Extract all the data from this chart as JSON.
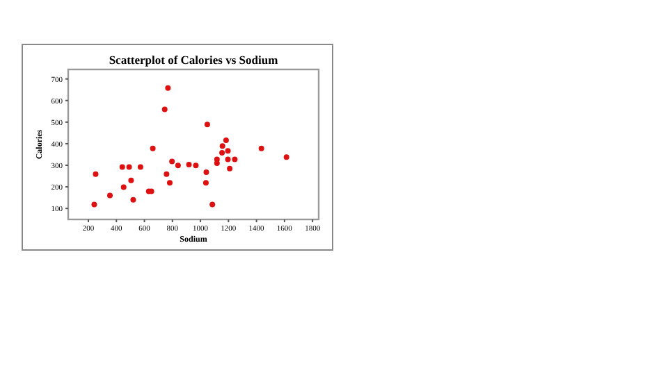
{
  "chart_data": {
    "type": "scatter",
    "title": "Scatterplot of Calories vs Sodium",
    "xlabel": "Sodium",
    "ylabel": "Calories",
    "marker": "circle",
    "xlim": [
      56,
      1844
    ],
    "ylim": [
      49,
      744
    ],
    "xticks": [
      200,
      400,
      600,
      800,
      1000,
      1200,
      1400,
      1600,
      1800
    ],
    "yticks": [
      100,
      200,
      300,
      400,
      500,
      600,
      700
    ],
    "x": [
      242,
      252,
      354,
      442,
      452,
      491,
      505,
      520,
      572,
      631,
      650,
      660,
      745,
      768,
      758,
      781,
      797,
      840,
      918,
      967,
      1039,
      1042,
      1049,
      1085,
      1118,
      1118,
      1157,
      1154,
      1183,
      1196,
      1196,
      1209,
      1245,
      1435,
      1614
    ],
    "series": [
      {
        "color": "#dd1111",
        "values": [
          118,
          259,
          160,
          292,
          199,
          292,
          230,
          140,
          292,
          179,
          179,
          378,
          559,
          658,
          259,
          219,
          318,
          299,
          303,
          299,
          219,
          268,
          489,
          118,
          327,
          310,
          389,
          358,
          416,
          367,
          327,
          285,
          327,
          378,
          338
        ]
      }
    ]
  }
}
